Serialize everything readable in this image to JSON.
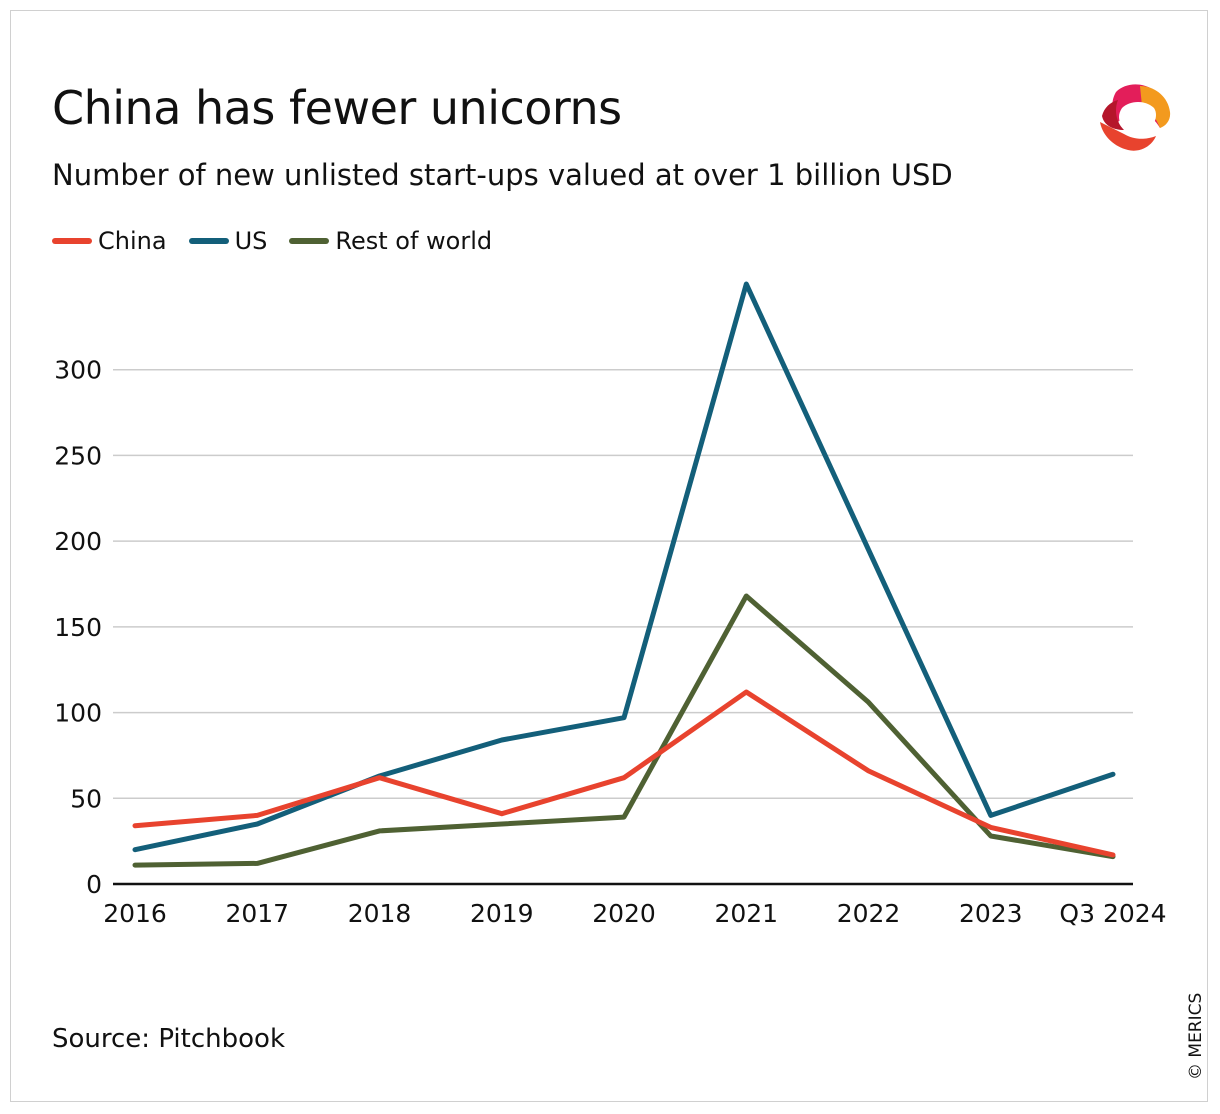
{
  "title": "China has fewer unicorns",
  "subtitle": "Number of new unlisted start-ups valued at over 1 billion USD",
  "source": "Source: Pitchbook",
  "copyright": "© MERICS",
  "logo_icon": "merics-logo-icon",
  "colors": {
    "China": "#e8432e",
    "US": "#135f7a",
    "Rest of world": "#4f6133",
    "grid": "#cccccc",
    "axis": "#111111"
  },
  "chart_data": {
    "type": "line",
    "title": "China has fewer unicorns",
    "subtitle": "Number of new unlisted start-ups valued at over 1 billion USD",
    "xlabel": "",
    "ylabel": "",
    "categories": [
      "2016",
      "2017",
      "2018",
      "2019",
      "2020",
      "2021",
      "2022",
      "2023",
      "Q3 2024"
    ],
    "ylim": [
      0,
      350
    ],
    "yticks": [
      0,
      50,
      100,
      150,
      200,
      250,
      300
    ],
    "grid": true,
    "legend_position": "top-left",
    "series": [
      {
        "name": "China",
        "values": [
          34,
          40,
          62,
          41,
          62,
          112,
          66,
          33,
          17
        ]
      },
      {
        "name": "US",
        "values": [
          20,
          35,
          63,
          84,
          97,
          350,
          195,
          40,
          64
        ]
      },
      {
        "name": "Rest of world",
        "values": [
          11,
          12,
          31,
          35,
          39,
          168,
          106,
          28,
          16
        ]
      }
    ]
  }
}
